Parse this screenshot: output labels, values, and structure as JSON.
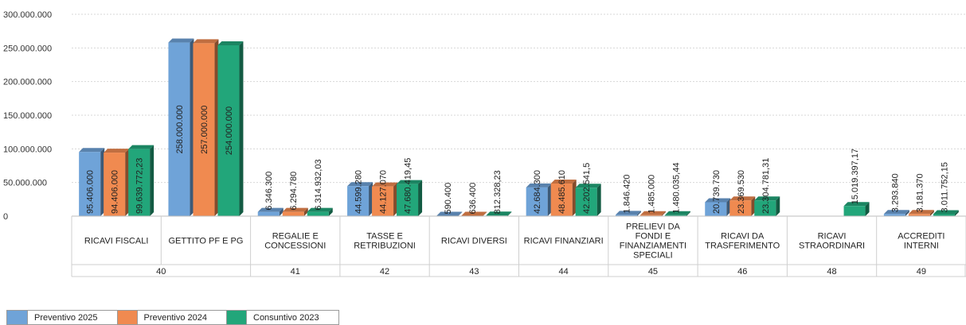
{
  "chart_data": {
    "type": "bar",
    "title": "",
    "xlabel": "",
    "ylabel": "",
    "ylim": [
      0,
      300000000
    ],
    "yticks": [
      0,
      50000000,
      100000000,
      150000000,
      200000000,
      250000000,
      300000000
    ],
    "ytick_labels": [
      "0",
      "50.000.000",
      "100.000.000",
      "150.000.000",
      "200.000.000",
      "250.000.000",
      "300.000.000"
    ],
    "grid": true,
    "legend_position": "bottom-left",
    "categories": [
      "RICAVI FISCALI",
      "GETTITO PF E PG",
      "REGALIE E CONCESSIONI",
      "TASSE E RETRIBUZIONI",
      "RICAVI DIVERSI",
      "RICAVI FINANZIARI",
      "PRELIEVI DA FONDI E FINANZIAMENTI SPECIALI",
      "RICAVI DA TRASFERIMENTO",
      "RICAVI STRAORDINARI",
      "ACCREDITI INTERNI"
    ],
    "category_lines": [
      [
        "RICAVI FISCALI"
      ],
      [
        "GETTITO PF E PG"
      ],
      [
        "REGALIE E",
        "CONCESSIONI"
      ],
      [
        "TASSE E",
        "RETRIBUZIONI"
      ],
      [
        "RICAVI DIVERSI"
      ],
      [
        "RICAVI FINANZIARI"
      ],
      [
        "PRELIEVI DA",
        "FONDI E",
        "FINANZIAMENTI",
        "SPECIALI"
      ],
      [
        "RICAVI DA",
        "TRASFERIMENTO"
      ],
      [
        "RICAVI",
        "STRAORDINARI"
      ],
      [
        "ACCREDITI",
        "INTERNI"
      ]
    ],
    "groups": [
      {
        "label": "40",
        "span": 2
      },
      {
        "label": "41",
        "span": 1
      },
      {
        "label": "42",
        "span": 1
      },
      {
        "label": "43",
        "span": 1
      },
      {
        "label": "44",
        "span": 1
      },
      {
        "label": "45",
        "span": 1
      },
      {
        "label": "46",
        "span": 1
      },
      {
        "label": "48",
        "span": 1
      },
      {
        "label": "49",
        "span": 1
      }
    ],
    "series": [
      {
        "name": "Preventivo 2025",
        "color": "#6fa3d8",
        "values": [
          95406000,
          258000000,
          6346300,
          44599280,
          590400,
          42684300,
          1846420,
          20739730,
          null,
          3293840
        ],
        "labels": [
          "95.406.000",
          "258.000.000",
          "6.346.300",
          "44.599.280",
          "590.400",
          "42.684.300",
          "1.846.420",
          "20.739.730",
          "",
          "3.293.840"
        ]
      },
      {
        "name": "Preventivo 2024",
        "color": "#f08a50",
        "values": [
          94406000,
          257000000,
          6294780,
          44127070,
          636400,
          48485610,
          1485000,
          23369530,
          null,
          3181370
        ],
        "labels": [
          "94.406.000",
          "257.000.000",
          "6.294.780",
          "44.127.070",
          "636.400",
          "48.485.610",
          "1.485.000",
          "23.369.530",
          "",
          "3.181.370"
        ]
      },
      {
        "name": "Consuntivo 2023",
        "color": "#22a67a",
        "values": [
          99639772.23,
          254000000,
          6314932.03,
          47680419.45,
          812328.23,
          42202541.5,
          1480035.44,
          23304781.31,
          15019397.17,
          3011752.15
        ],
        "labels": [
          "99.639.772,23",
          "254.000.000",
          "6.314.932,03",
          "47.680.419,45",
          "812.328,23",
          "42.202.541,5",
          "1.480.035,44",
          "23.304.781,31",
          "15.019.397,17",
          "3.011.752,15"
        ]
      }
    ]
  }
}
